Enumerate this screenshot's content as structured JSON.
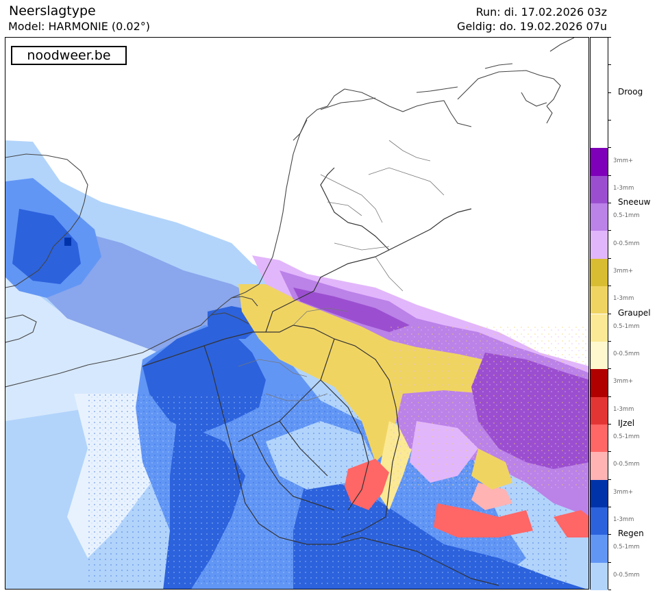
{
  "header": {
    "title": "Neerslagtype",
    "model": "Model: HARMONIE (0.02°)",
    "run": "Run: di. 17.02.2026 03z",
    "valid": "Geldig: do. 19.02.2026 07u"
  },
  "logo": "noodweer.be",
  "legend": {
    "dry": {
      "label": "Droog",
      "color": "#ffffff"
    },
    "categories": [
      {
        "label": "Sneeuw",
        "colors": [
          "#7e00b8",
          "#9b4fd0",
          "#bb82e8",
          "#e2b6fb"
        ]
      },
      {
        "label": "Graupel",
        "colors": [
          "#d8bc32",
          "#f0d462",
          "#fbe995",
          "#fff8cf"
        ]
      },
      {
        "label": "IJzel",
        "colors": [
          "#b00000",
          "#e43535",
          "#ff6666",
          "#ffb3b3"
        ]
      },
      {
        "label": "Regen",
        "colors": [
          "#0033aa",
          "#2c62dc",
          "#6296f5",
          "#b2d4fb"
        ]
      }
    ],
    "intensity_labels": [
      "3mm+",
      "1-3mm",
      "0.5-1mm",
      "0-0.5mm"
    ]
  }
}
